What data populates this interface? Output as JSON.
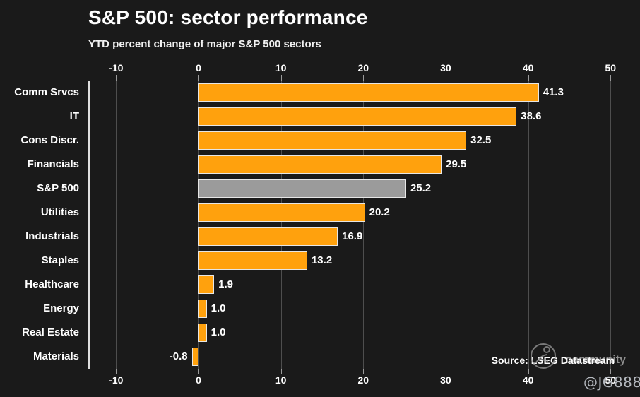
{
  "header": {
    "title": "S&P 500: sector performance",
    "subtitle": "YTD percent change of major S&P 500 sectors"
  },
  "chart_data": {
    "type": "bar",
    "orientation": "horizontal",
    "title": "S&P 500: sector performance",
    "subtitle": "YTD percent change of major S&P 500 sectors",
    "categories": [
      "Comm Srvcs",
      "IT",
      "Cons Discr.",
      "Financials",
      "S&P 500",
      "Utilities",
      "Industrials",
      "Staples",
      "Healthcare",
      "Energy",
      "Real Estate",
      "Materials"
    ],
    "values": [
      41.3,
      38.6,
      32.5,
      29.5,
      25.2,
      20.2,
      16.9,
      13.2,
      1.9,
      1.0,
      1.0,
      -0.8
    ],
    "value_labels": [
      "41.3",
      "38.6",
      "32.5",
      "29.5",
      "25.2",
      "20.2",
      "16.9",
      "13.2",
      "1.9",
      "1.0",
      "1.0",
      "-0.8"
    ],
    "highlight_category": "S&P 500",
    "xlabel": "",
    "ylabel": "",
    "ticks": [
      -10,
      0,
      10,
      20,
      30,
      40,
      50
    ],
    "xlim": [
      -13.4,
      51.4
    ],
    "grid": true,
    "bar_color": "#FFA10D",
    "highlight_color": "#9B9B9B",
    "bar_border_color": "#E6E6E6",
    "grid_color": "#4E4E4E",
    "background_color": "#1A1A1A",
    "text_color": "#FFFFFF"
  },
  "footer": {
    "source": "Source: LSEG Datastream",
    "watermark_text": "community",
    "watermark_handle": "@JG888"
  }
}
